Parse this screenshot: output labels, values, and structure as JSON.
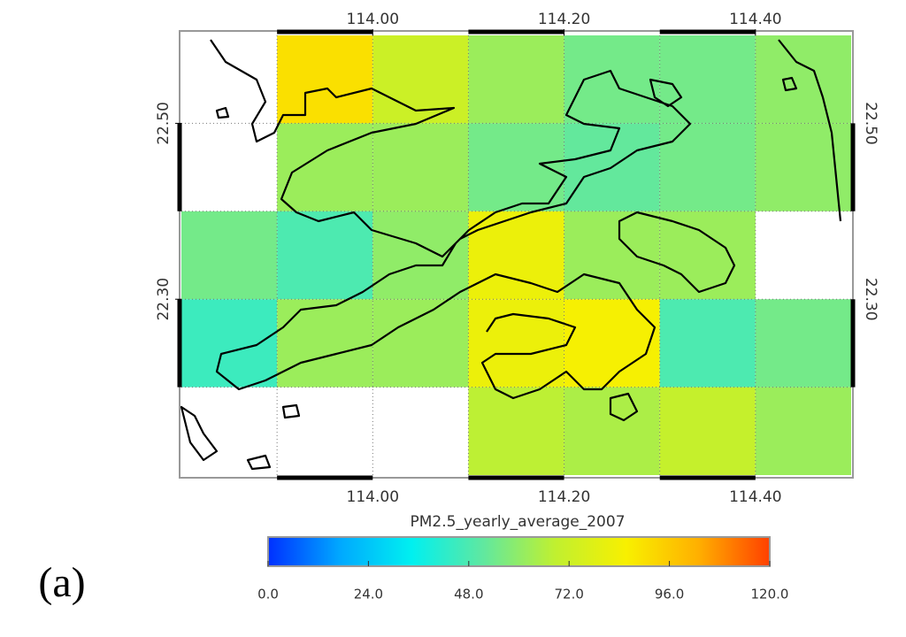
{
  "chart_data": {
    "type": "heatmap",
    "title": "PM2.5_yearly_average_2007",
    "panel_label": "(a)",
    "x": [
      113.85,
      113.95,
      114.05,
      114.15,
      114.25,
      114.35,
      114.45
    ],
    "y": [
      22.55,
      22.45,
      22.35,
      22.25,
      22.15
    ],
    "values": [
      [
        null,
        90,
        72,
        62,
        55,
        55,
        60
      ],
      [
        null,
        62,
        62,
        55,
        52,
        55,
        60
      ],
      [
        55,
        48,
        60,
        82,
        62,
        62,
        null
      ],
      [
        45,
        62,
        62,
        82,
        85,
        48,
        55
      ],
      [
        null,
        null,
        null,
        68,
        65,
        70,
        62
      ]
    ],
    "xlim": [
      113.8,
      114.5
    ],
    "ylim": [
      22.1,
      22.6
    ],
    "xticks": [
      {
        "value": 114.0,
        "label": "114.00"
      },
      {
        "value": 114.2,
        "label": "114.20"
      },
      {
        "value": 114.4,
        "label": "114.40"
      }
    ],
    "yticks": [
      {
        "value": 22.5,
        "label": "22.50"
      },
      {
        "value": 22.3,
        "label": "22.30"
      }
    ],
    "clim": [
      0,
      120
    ],
    "cticks": [
      {
        "value": 0,
        "label": "0.0"
      },
      {
        "value": 24,
        "label": "24.0"
      },
      {
        "value": 48,
        "label": "48.0"
      },
      {
        "value": 72,
        "label": "72.0"
      },
      {
        "value": 96,
        "label": "96.0"
      },
      {
        "value": 120,
        "label": "120.0"
      }
    ],
    "colormap": [
      "#0030ff",
      "#00a8ff",
      "#00f0f0",
      "#60e8a0",
      "#c0f030",
      "#f8f000",
      "#ffb000",
      "#ff4000"
    ],
    "grid": true
  }
}
